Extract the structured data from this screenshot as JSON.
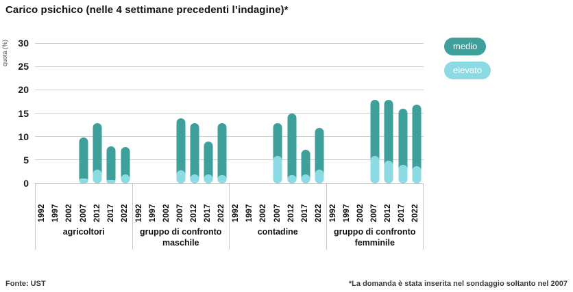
{
  "title": "Carico psichico (nelle 4 settimane precedenti l’indagine)*",
  "footer": {
    "source": "Fonte: UST",
    "note": "*La domanda è stata inserita nel sondaggio soltanto nel 2007"
  },
  "legend": [
    {
      "name": "medio",
      "label": "medio",
      "color": "#3FA09B"
    },
    {
      "name": "elevato",
      "label": "elevato",
      "color": "#8CDBE4"
    }
  ],
  "colors": {
    "medio": "#3FA09B",
    "elevato": "#8CDBE4",
    "gridline": "#CCCCCC",
    "separator": "#C9C9C9"
  },
  "chart_data": {
    "type": "bar",
    "stacked": true,
    "title": "Carico psichico (nelle 4 settimane precedenti l’indagine)*",
    "xlabel": "",
    "ylabel": "quota (%)",
    "ylim": [
      0,
      30
    ],
    "yticks": [
      0,
      5,
      10,
      15,
      20,
      25,
      30
    ],
    "grid": true,
    "legend_position": "right",
    "years": [
      "1992",
      "1997",
      "2002",
      "2007",
      "2012",
      "2017",
      "2022"
    ],
    "groups": [
      {
        "label": "agricoltori",
        "series": [
          {
            "name": "medio",
            "values": [
              null,
              null,
              null,
              8.8,
              10.0,
              7.2,
              5.9
            ]
          },
          {
            "name": "elevato",
            "values": [
              null,
              null,
              null,
              1.0,
              2.9,
              0.7,
              1.9
            ]
          }
        ]
      },
      {
        "label": "gruppo di confronto maschile",
        "series": [
          {
            "name": "medio",
            "values": [
              null,
              null,
              null,
              11.1,
              11.0,
              7.0,
              11.1
            ]
          },
          {
            "name": "elevato",
            "values": [
              null,
              null,
              null,
              2.8,
              1.9,
              1.9,
              1.8
            ]
          }
        ]
      },
      {
        "label": "contadine",
        "series": [
          {
            "name": "medio",
            "values": [
              null,
              null,
              null,
              7.0,
              13.1,
              5.2,
              9.0
            ]
          },
          {
            "name": "elevato",
            "values": [
              null,
              null,
              null,
              5.9,
              1.8,
              1.9,
              2.9
            ]
          }
        ]
      },
      {
        "label": "gruppo di confronto femminile",
        "series": [
          {
            "name": "medio",
            "values": [
              null,
              null,
              null,
              12.0,
              13.0,
              12.0,
              13.1
            ]
          },
          {
            "name": "elevato",
            "values": [
              null,
              null,
              null,
              5.8,
              4.9,
              3.9,
              3.7
            ]
          }
        ]
      }
    ]
  }
}
